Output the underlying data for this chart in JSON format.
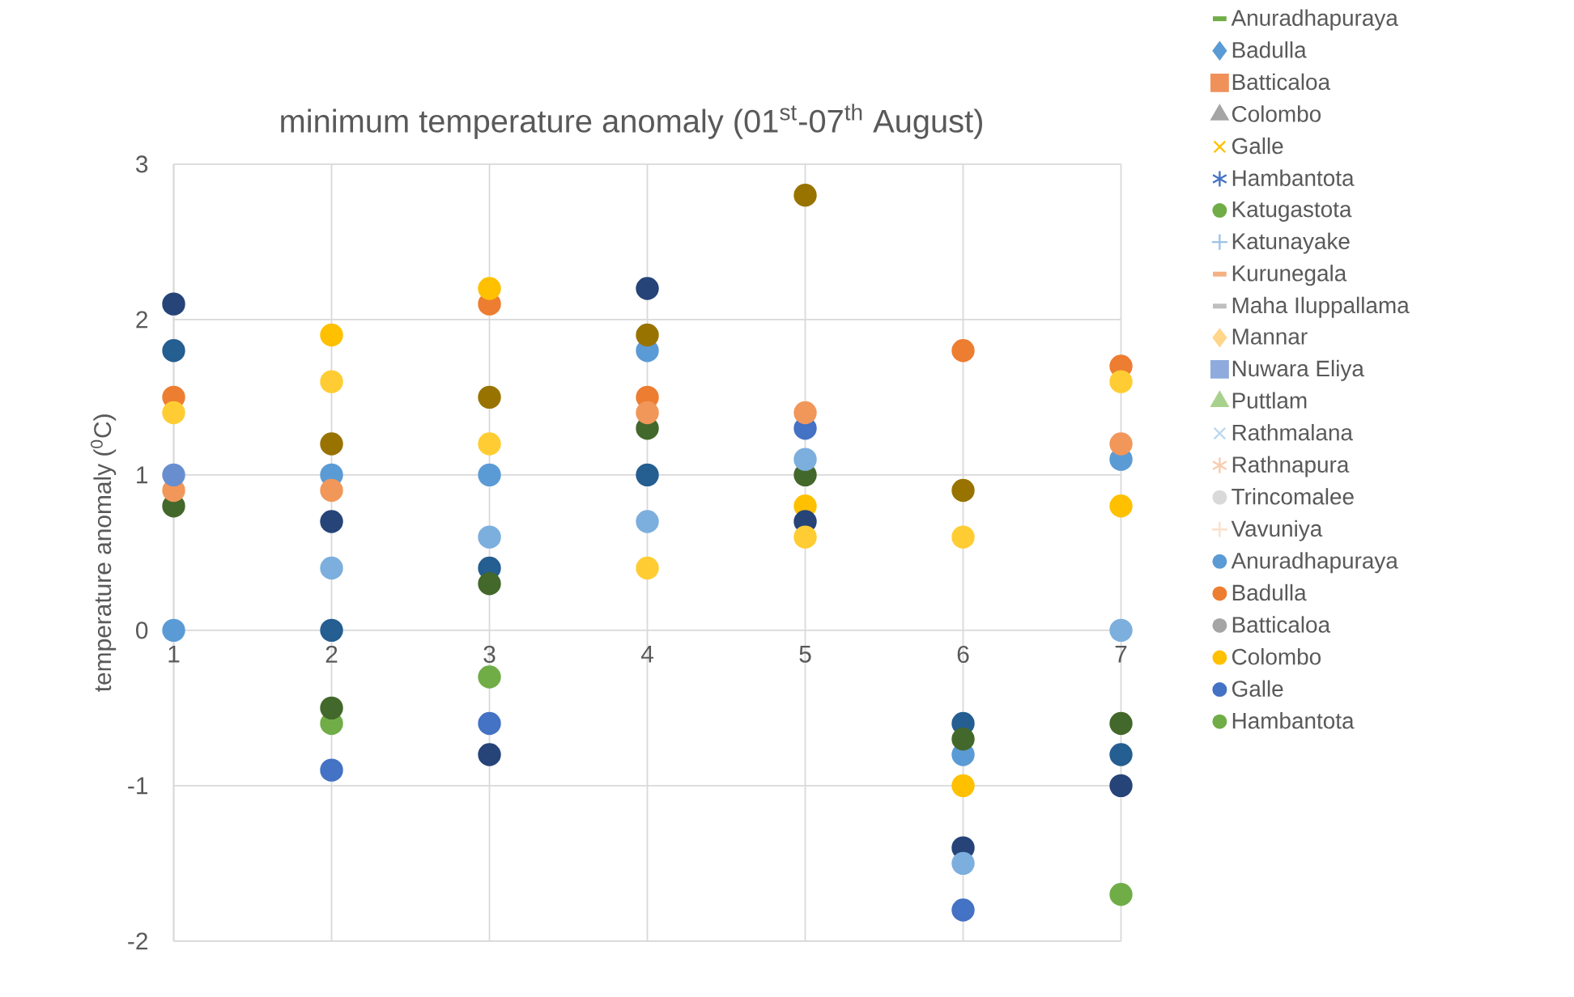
{
  "chart_data": {
    "type": "scatter",
    "title": "minimum temperature anomaly (01$^{st}$-07$^{th}$ August)",
    "ylabel": "temperature anomaly ($^{0}$C)",
    "x": [
      1,
      2,
      3,
      4,
      5,
      6,
      7
    ],
    "xlim": [
      1,
      7
    ],
    "xticks": [
      1,
      2,
      3,
      4,
      5,
      6,
      7
    ],
    "ylim": [
      -2,
      3
    ],
    "yticks": [
      -2,
      -1,
      0,
      1,
      2,
      3
    ],
    "grid": true,
    "legend": "right",
    "series": [
      {
        "name": "Anuradhapuraya",
        "color": "#70ad47",
        "marker": "dash",
        "values": [
          null,
          null,
          null,
          null,
          null,
          null,
          null
        ]
      },
      {
        "name": "Badulla",
        "color": "#5b9bd5",
        "marker": "diamond",
        "values": [
          null,
          null,
          null,
          null,
          null,
          null,
          null
        ]
      },
      {
        "name": "Batticaloa",
        "color": "#f0915a",
        "marker": "square",
        "values": [
          null,
          null,
          null,
          null,
          null,
          null,
          null
        ]
      },
      {
        "name": "Colombo",
        "color": "#a5a5a5",
        "marker": "triangle",
        "values": [
          null,
          null,
          null,
          null,
          null,
          null,
          null
        ]
      },
      {
        "name": "Galle",
        "color": "#ffc000",
        "marker": "cross",
        "values": [
          null,
          null,
          null,
          null,
          null,
          null,
          null
        ]
      },
      {
        "name": "Hambantota",
        "color": "#4472c4",
        "marker": "star",
        "values": [
          null,
          null,
          null,
          null,
          null,
          null,
          null
        ]
      },
      {
        "name": "Katugastota",
        "color": "#70ad47",
        "marker": "circle",
        "values": [
          null,
          null,
          null,
          null,
          null,
          null,
          null
        ]
      },
      {
        "name": "Katunayake",
        "color": "#9dc3e6",
        "marker": "plus",
        "values": [
          null,
          null,
          null,
          null,
          null,
          null,
          null
        ]
      },
      {
        "name": "Kurunegala",
        "color": "#f4b183",
        "marker": "dash",
        "values": [
          null,
          null,
          null,
          null,
          null,
          null,
          null
        ]
      },
      {
        "name": "Maha Iluppallama",
        "color": "#bfbfbf",
        "marker": "dash",
        "values": [
          null,
          null,
          null,
          null,
          null,
          null,
          null
        ]
      },
      {
        "name": "Mannar",
        "color": "#ffd68a",
        "marker": "diamond",
        "values": [
          null,
          null,
          null,
          null,
          null,
          null,
          null
        ]
      },
      {
        "name": "Nuwara Eliya",
        "color": "#8faadc",
        "marker": "square",
        "values": [
          null,
          null,
          null,
          null,
          null,
          null,
          null
        ]
      },
      {
        "name": "Puttlam",
        "color": "#a9d18e",
        "marker": "triangle",
        "values": [
          null,
          null,
          null,
          null,
          null,
          null,
          null
        ]
      },
      {
        "name": "Rathmalana",
        "color": "#bdd7ee",
        "marker": "cross",
        "values": [
          null,
          null,
          null,
          null,
          null,
          null,
          null
        ]
      },
      {
        "name": "Rathnapura",
        "color": "#f8cbad",
        "marker": "star",
        "values": [
          null,
          null,
          null,
          null,
          null,
          null,
          null
        ]
      },
      {
        "name": "Trincomalee",
        "color": "#d9d9d9",
        "marker": "circle",
        "values": [
          null,
          null,
          null,
          null,
          null,
          null,
          null
        ]
      },
      {
        "name": "Vavuniya",
        "color": "#fbe0cc",
        "marker": "plus",
        "values": [
          null,
          null,
          null,
          null,
          null,
          null,
          null
        ]
      },
      {
        "name": "Anuradhapuraya",
        "color": "#5b9bd5",
        "marker": "circle",
        "values": [
          0,
          1.0,
          1.0,
          1.8,
          null,
          -0.8,
          1.1
        ]
      },
      {
        "name": "Badulla",
        "color": "#ed7d31",
        "marker": "circle",
        "values": [
          1.5,
          null,
          2.1,
          1.5,
          null,
          1.8,
          1.7
        ]
      },
      {
        "name": "Batticaloa",
        "color": "#a5a5a5",
        "marker": "circle",
        "values": [
          null,
          null,
          null,
          null,
          null,
          null,
          null
        ]
      },
      {
        "name": "Colombo",
        "color": "#ffc000",
        "marker": "circle",
        "values": [
          null,
          1.9,
          2.2,
          null,
          0.8,
          -1.0,
          0.8
        ]
      },
      {
        "name": "Galle",
        "color": "#4472c4",
        "marker": "circle",
        "values": [
          null,
          -0.9,
          -0.6,
          null,
          1.3,
          -1.8,
          null
        ]
      },
      {
        "name": "Hambantota",
        "color": "#70ad47",
        "marker": "circle",
        "values": [
          null,
          -0.6,
          -0.3,
          null,
          null,
          null,
          -1.7
        ]
      },
      {
        "color": "#255e91",
        "marker": "circle",
        "values": [
          1.8,
          0.0,
          0.4,
          1.0,
          null,
          -0.6,
          -0.8
        ]
      },
      {
        "color": "#997300",
        "marker": "circle",
        "values": [
          null,
          1.2,
          1.5,
          1.9,
          2.8,
          0.9,
          null
        ]
      },
      {
        "color": "#264478",
        "marker": "circle",
        "values": [
          2.1,
          0.7,
          -0.8,
          2.2,
          0.7,
          -1.4,
          -1.0
        ]
      },
      {
        "color": "#43682b",
        "marker": "circle",
        "values": [
          0.8,
          -0.5,
          0.3,
          1.3,
          1.0,
          -0.7,
          -0.6
        ]
      },
      {
        "color": "#7cafdd",
        "marker": "circle",
        "values": [
          null,
          0.4,
          0.6,
          0.7,
          1.1,
          -1.5,
          0.0
        ]
      },
      {
        "color": "#f1975a",
        "marker": "circle",
        "values": [
          0.9,
          0.9,
          null,
          1.4,
          1.4,
          null,
          1.2
        ]
      },
      {
        "color": "#ffcd33",
        "marker": "circle",
        "values": [
          1.4,
          1.6,
          1.2,
          0.4,
          0.6,
          0.6,
          1.6
        ]
      },
      {
        "color": "#698ed0",
        "marker": "circle",
        "values": [
          1.0,
          null,
          null,
          null,
          null,
          null,
          null
        ]
      }
    ]
  }
}
